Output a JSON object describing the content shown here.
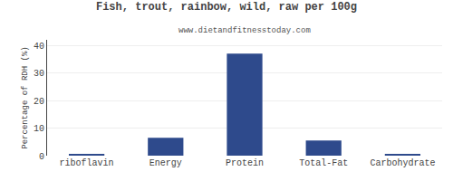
{
  "chart_data": {
    "type": "bar",
    "title": "Fish, trout, rainbow, wild, raw per 100g",
    "subtitle": "www.dietandfitnesstoday.com",
    "categories": [
      "riboflavin",
      "Energy",
      "Protein",
      "Total-Fat",
      "Carbohydrate"
    ],
    "values": [
      0.5,
      6.5,
      37.0,
      5.5,
      0.5
    ],
    "color": "#2e4a8c",
    "ylabel": "Percentage of RDH (%)",
    "ylim": [
      0,
      42
    ],
    "yticks": [
      0,
      10,
      20,
      30,
      40
    ],
    "grid": true
  }
}
